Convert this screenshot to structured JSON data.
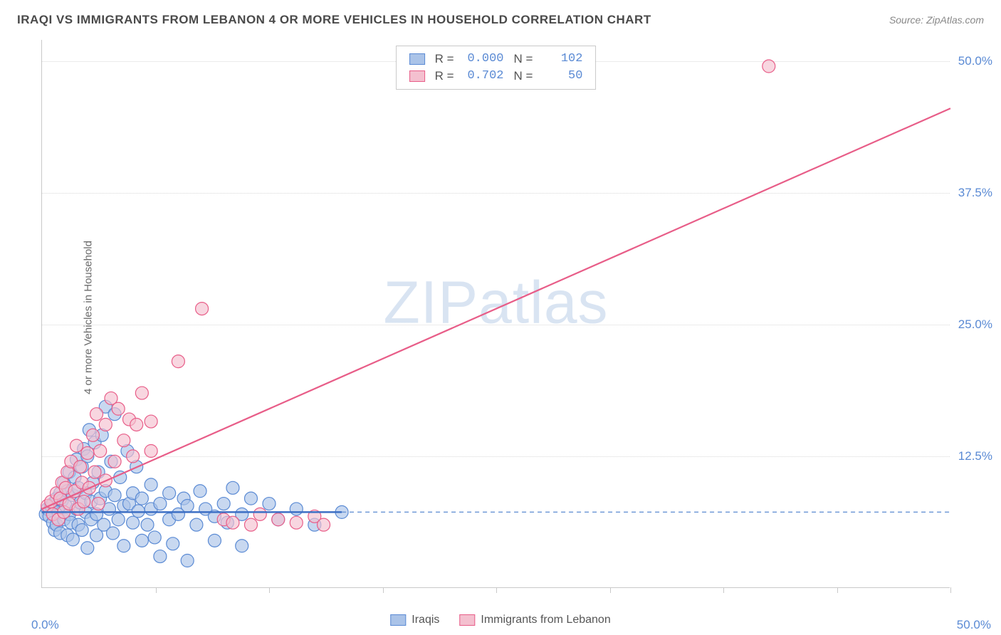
{
  "title": "IRAQI VS IMMIGRANTS FROM LEBANON 4 OR MORE VEHICLES IN HOUSEHOLD CORRELATION CHART",
  "source": "Source: ZipAtlas.com",
  "y_axis_label": "4 or more Vehicles in Household",
  "watermark": {
    "bold": "ZIP",
    "thin": "atlas"
  },
  "chart": {
    "type": "scatter",
    "xlim": [
      0,
      50
    ],
    "ylim": [
      0,
      52
    ],
    "x_origin_label": "0.0%",
    "x_max_label": "50.0%",
    "y_ticks": [
      {
        "v": 12.5,
        "label": "12.5%"
      },
      {
        "v": 25.0,
        "label": "25.0%"
      },
      {
        "v": 37.5,
        "label": "37.5%"
      },
      {
        "v": 50.0,
        "label": "50.0%"
      }
    ],
    "x_tick_positions": [
      6.25,
      12.5,
      18.75,
      25,
      31.25,
      37.5,
      43.75,
      50
    ],
    "grid_h": [
      12.5,
      25.0,
      37.5,
      50.0
    ],
    "background_color": "#ffffff",
    "grid_color": "#d8d8d8",
    "series": [
      {
        "key": "iraqis",
        "label": "Iraqis",
        "color_fill": "#aac3e8",
        "color_stroke": "#5a8ad4",
        "marker_opacity": 0.65,
        "marker_radius": 9,
        "R": "0.000",
        "N": "102",
        "trend": {
          "x1": 0,
          "y1": 7.2,
          "x2": 16.5,
          "y2": 7.2,
          "color": "#3d6fc4",
          "width": 2.4
        },
        "trend_ext": {
          "x1": 16.5,
          "y1": 7.2,
          "x2": 50,
          "y2": 7.2,
          "color": "#6f98d6",
          "dash": "6,5",
          "width": 1.6
        },
        "points": [
          [
            0.2,
            7.0
          ],
          [
            0.3,
            7.5
          ],
          [
            0.4,
            6.8
          ],
          [
            0.5,
            7.8
          ],
          [
            0.6,
            6.2
          ],
          [
            0.6,
            8.0
          ],
          [
            0.7,
            5.5
          ],
          [
            0.8,
            8.5
          ],
          [
            0.8,
            6.0
          ],
          [
            0.9,
            7.2
          ],
          [
            1.0,
            9.0
          ],
          [
            1.0,
            5.2
          ],
          [
            1.1,
            8.3
          ],
          [
            1.2,
            6.5
          ],
          [
            1.2,
            10.0
          ],
          [
            1.3,
            7.8
          ],
          [
            1.4,
            5.0
          ],
          [
            1.4,
            9.2
          ],
          [
            1.5,
            7.0
          ],
          [
            1.5,
            11.0
          ],
          [
            1.6,
            6.2
          ],
          [
            1.7,
            8.8
          ],
          [
            1.7,
            4.6
          ],
          [
            1.8,
            10.5
          ],
          [
            1.9,
            7.5
          ],
          [
            1.9,
            12.2
          ],
          [
            2.0,
            6.0
          ],
          [
            2.0,
            9.5
          ],
          [
            2.1,
            8.1
          ],
          [
            2.2,
            11.5
          ],
          [
            2.2,
            5.5
          ],
          [
            2.3,
            13.2
          ],
          [
            2.4,
            7.2
          ],
          [
            2.4,
            9.0
          ],
          [
            2.5,
            3.8
          ],
          [
            2.5,
            12.5
          ],
          [
            2.6,
            15.0
          ],
          [
            2.7,
            8.2
          ],
          [
            2.7,
            6.5
          ],
          [
            2.8,
            10.0
          ],
          [
            2.9,
            13.8
          ],
          [
            3.0,
            7.0
          ],
          [
            3.0,
            5.0
          ],
          [
            3.1,
            11.0
          ],
          [
            3.2,
            8.5
          ],
          [
            3.3,
            14.5
          ],
          [
            3.4,
            6.0
          ],
          [
            3.5,
            9.2
          ],
          [
            3.5,
            17.2
          ],
          [
            3.7,
            7.5
          ],
          [
            3.8,
            12.0
          ],
          [
            3.9,
            5.2
          ],
          [
            4.0,
            8.8
          ],
          [
            4.0,
            16.5
          ],
          [
            4.2,
            6.5
          ],
          [
            4.3,
            10.5
          ],
          [
            4.5,
            7.8
          ],
          [
            4.5,
            4.0
          ],
          [
            4.7,
            13.0
          ],
          [
            4.8,
            8.0
          ],
          [
            5.0,
            6.2
          ],
          [
            5.0,
            9.0
          ],
          [
            5.2,
            11.5
          ],
          [
            5.3,
            7.3
          ],
          [
            5.5,
            4.5
          ],
          [
            5.5,
            8.5
          ],
          [
            5.8,
            6.0
          ],
          [
            6.0,
            9.8
          ],
          [
            6.0,
            7.5
          ],
          [
            6.2,
            4.8
          ],
          [
            6.5,
            8.0
          ],
          [
            6.5,
            3.0
          ],
          [
            7.0,
            6.5
          ],
          [
            7.0,
            9.0
          ],
          [
            7.2,
            4.2
          ],
          [
            7.5,
            7.0
          ],
          [
            7.8,
            8.5
          ],
          [
            8.0,
            2.6
          ],
          [
            8.0,
            7.8
          ],
          [
            8.5,
            6.0
          ],
          [
            8.7,
            9.2
          ],
          [
            9.0,
            7.5
          ],
          [
            9.5,
            6.8
          ],
          [
            9.5,
            4.5
          ],
          [
            10.0,
            8.0
          ],
          [
            10.2,
            6.2
          ],
          [
            10.5,
            9.5
          ],
          [
            11.0,
            7.0
          ],
          [
            11.0,
            4.0
          ],
          [
            11.5,
            8.5
          ],
          [
            12.5,
            8.0
          ],
          [
            13.0,
            6.5
          ],
          [
            14.0,
            7.5
          ],
          [
            15.0,
            6.0
          ],
          [
            16.5,
            7.2
          ]
        ]
      },
      {
        "key": "lebanon",
        "label": "Immigrants from Lebanon",
        "color_fill": "#f4c0cf",
        "color_stroke": "#e85d88",
        "marker_opacity": 0.65,
        "marker_radius": 9,
        "R": "0.702",
        "N": "50",
        "trend": {
          "x1": 0,
          "y1": 7.5,
          "x2": 50,
          "y2": 45.5,
          "color": "#e85d88",
          "width": 2.2
        },
        "points": [
          [
            0.3,
            7.8
          ],
          [
            0.5,
            8.2
          ],
          [
            0.6,
            7.0
          ],
          [
            0.8,
            9.0
          ],
          [
            0.9,
            6.5
          ],
          [
            1.0,
            8.5
          ],
          [
            1.1,
            10.0
          ],
          [
            1.2,
            7.2
          ],
          [
            1.3,
            9.5
          ],
          [
            1.4,
            11.0
          ],
          [
            1.5,
            8.0
          ],
          [
            1.6,
            12.0
          ],
          [
            1.8,
            9.2
          ],
          [
            1.9,
            13.5
          ],
          [
            2.0,
            7.5
          ],
          [
            2.1,
            11.5
          ],
          [
            2.2,
            10.0
          ],
          [
            2.3,
            8.2
          ],
          [
            2.5,
            12.8
          ],
          [
            2.6,
            9.5
          ],
          [
            2.8,
            14.5
          ],
          [
            2.9,
            11.0
          ],
          [
            3.0,
            16.5
          ],
          [
            3.1,
            8.0
          ],
          [
            3.2,
            13.0
          ],
          [
            3.5,
            15.5
          ],
          [
            3.5,
            10.2
          ],
          [
            3.8,
            18.0
          ],
          [
            4.0,
            12.0
          ],
          [
            4.2,
            17.0
          ],
          [
            4.5,
            14.0
          ],
          [
            4.8,
            16.0
          ],
          [
            5.0,
            12.5
          ],
          [
            5.2,
            15.5
          ],
          [
            5.5,
            18.5
          ],
          [
            6.0,
            13.0
          ],
          [
            6.0,
            15.8
          ],
          [
            7.5,
            21.5
          ],
          [
            8.8,
            26.5
          ],
          [
            10.0,
            6.5
          ],
          [
            10.5,
            6.2
          ],
          [
            11.5,
            6.0
          ],
          [
            12.0,
            7.0
          ],
          [
            13.0,
            6.5
          ],
          [
            14.0,
            6.2
          ],
          [
            15.0,
            6.8
          ],
          [
            15.5,
            6.0
          ],
          [
            40.0,
            49.5
          ]
        ]
      }
    ],
    "legend_bottom": [
      {
        "label": "Iraqis",
        "fill": "#aac3e8",
        "stroke": "#5a8ad4"
      },
      {
        "label": "Immigrants from Lebanon",
        "fill": "#f4c0cf",
        "stroke": "#e85d88"
      }
    ],
    "legend_top": [
      {
        "fill": "#aac3e8",
        "stroke": "#5a8ad4",
        "R": "0.000",
        "N": "102"
      },
      {
        "fill": "#f4c0cf",
        "stroke": "#e85d88",
        "R": "0.702",
        "N": "50"
      }
    ]
  }
}
